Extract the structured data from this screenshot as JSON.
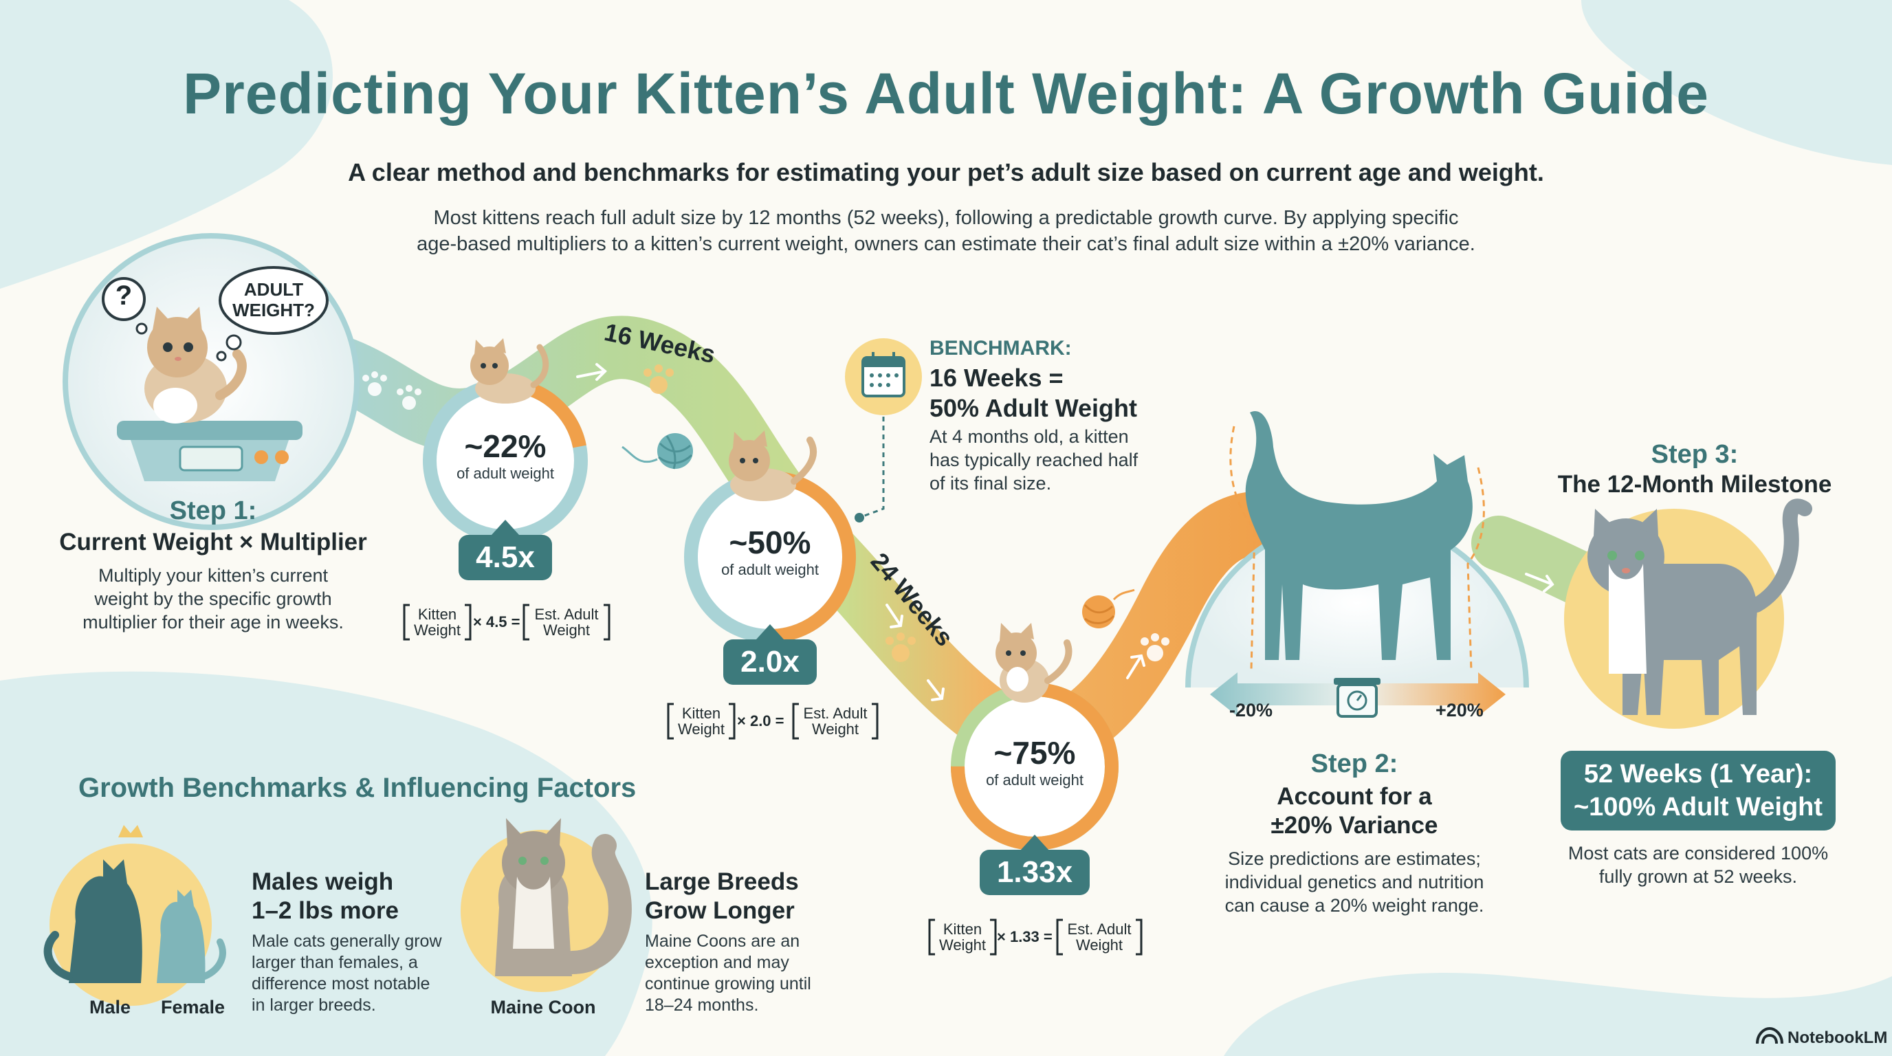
{
  "header": {
    "title": "Predicting Your Kitten’s Adult Weight: A Growth Guide",
    "subtitle": "A clear method and benchmarks for estimating your pet’s adult size based on current age and weight.",
    "intro_line1": "Most kittens reach full adult size by 12 months (52 weeks), following a predictable growth curve. By applying specific",
    "intro_line2": "age-based multipliers to a kitten’s current weight, owners can estimate their cat’s final adult size within a ±20% variance."
  },
  "step1": {
    "bubble_q": "?",
    "bubble_line1": "ADULT",
    "bubble_line2": "WEIGHT?",
    "heading": "Step 1:",
    "title": "Current Weight × Multiplier",
    "body_line1": "Multiply your kitten’s current",
    "body_line2": "weight by the specific growth",
    "body_line3": "multiplier for their age in weeks."
  },
  "stages": [
    {
      "percent": "~22%",
      "sub": "of adult weight",
      "multiplier": "4.5x",
      "f_kitten1": "Kitten",
      "f_kitten2": "Weight",
      "f_op": "× 4.5 =",
      "f_est1": "Est. Adult",
      "f_est2": "Weight"
    },
    {
      "percent": "~50%",
      "sub": "of adult weight",
      "multiplier": "2.0x",
      "f_kitten1": "Kitten",
      "f_kitten2": "Weight",
      "f_op": "× 2.0 =",
      "f_est1": "Est. Adult",
      "f_est2": "Weight"
    },
    {
      "percent": "~75%",
      "sub": "of adult weight",
      "multiplier": "1.33x",
      "f_kitten1": "Kitten",
      "f_kitten2": "Weight",
      "f_op": "× 1.33 =",
      "f_est1": "Est. Adult",
      "f_est2": "Weight"
    }
  ],
  "ring_fill": [
    0.22,
    0.5,
    0.75
  ],
  "week_labels": {
    "w16": "16 Weeks",
    "w24": "24 Weeks"
  },
  "benchmark": {
    "label": "BENCHMARK:",
    "title_line1": "16 Weeks =",
    "title_line2": "50% Adult Weight",
    "body_line1": "At 4 months old, a kitten",
    "body_line2": "has typically reached half",
    "body_line3": "of its final size."
  },
  "step2": {
    "minus": "-20%",
    "plus": "+20%",
    "heading": "Step 2:",
    "title_line1": "Account for a",
    "title_line2": "±20% Variance",
    "body_line1": "Size predictions are estimates;",
    "body_line2": "individual genetics and nutrition",
    "body_line3": "can cause a 20% weight range."
  },
  "step3": {
    "heading": "Step 3:",
    "title": "The 12-Month Milestone",
    "badge_line1": "52 Weeks (1 Year):",
    "badge_line2": "~100% Adult Weight",
    "body_line1": "Most cats are considered 100%",
    "body_line2": "fully grown at 52 weeks."
  },
  "factors": {
    "heading": "Growth Benchmarks & Influencing Factors",
    "male_label": "Male",
    "female_label": "Female",
    "sex_title_line1": "Males weigh",
    "sex_title_line2": "1–2 lbs more",
    "sex_body_line1": "Male cats generally grow",
    "sex_body_line2": "larger than females, a",
    "sex_body_line3": "difference most notable",
    "sex_body_line4": "in larger breeds.",
    "breed_label": "Maine Coon",
    "breed_title_line1": "Large Breeds",
    "breed_title_line2": "Grow Longer",
    "breed_body_line1": "Maine Coons are an",
    "breed_body_line2": "exception and may",
    "breed_body_line3": "continue growing until",
    "breed_body_line4": "18–24 months."
  },
  "brand": "NotebookLM",
  "colors": {
    "teal": "#3d7a7c",
    "orange": "#f0a04a",
    "green": "#a8c98a",
    "yellow": "#f7d98a",
    "light_teal": "#a9d3d6"
  }
}
